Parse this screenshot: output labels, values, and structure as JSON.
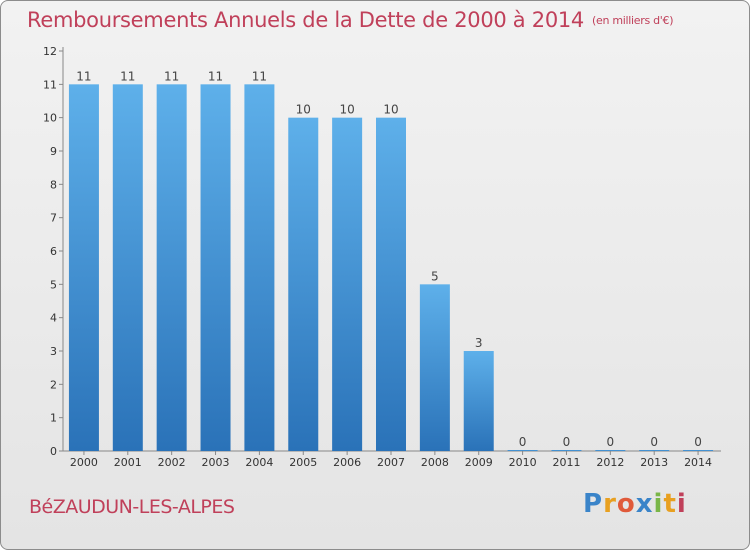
{
  "header": {
    "title": "Remboursements Annuels de la Dette de 2000 à 2014",
    "unit": "(en milliers d'€)"
  },
  "footer": {
    "commune": "BéZAUDUN-LES-ALPES",
    "logo_letters": [
      "P",
      "r",
      "o",
      "x",
      "i",
      "t",
      "i"
    ],
    "logo_colors": [
      "#3a84c9",
      "#e8a020",
      "#e05a3a",
      "#3a84c9",
      "#7ab648",
      "#e8a020",
      "#c0405a"
    ]
  },
  "colors": {
    "bar": "#3a8fd6",
    "bar_light": "#5eb0ea",
    "bar_dark": "#2a72b8",
    "text_accent": "#c0405a"
  },
  "chart_data": {
    "type": "bar",
    "categories": [
      "2000",
      "2001",
      "2002",
      "2003",
      "2004",
      "2005",
      "2006",
      "2007",
      "2008",
      "2009",
      "2010",
      "2011",
      "2012",
      "2013",
      "2014"
    ],
    "values": [
      11,
      11,
      11,
      11,
      11,
      10,
      10,
      10,
      5,
      3,
      0,
      0,
      0,
      0,
      0
    ],
    "title": "Remboursements Annuels de la Dette de 2000 à 2014",
    "xlabel": "",
    "ylabel": "",
    "ylim": [
      0,
      12
    ],
    "yticks": [
      0,
      1,
      2,
      3,
      4,
      5,
      6,
      7,
      8,
      9,
      10,
      11,
      12
    ],
    "grid": false,
    "legend": "none"
  }
}
